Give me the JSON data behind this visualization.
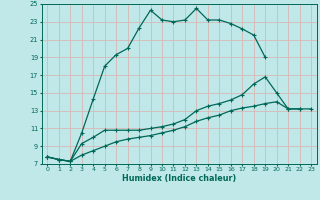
{
  "title": "",
  "xlabel": "Humidex (Indice chaleur)",
  "background_color": "#c0e8e8",
  "grid_color": "#d8b8b8",
  "line_color": "#006858",
  "xlim": [
    -0.5,
    23.5
  ],
  "ylim": [
    7,
    25
  ],
  "xticks": [
    0,
    1,
    2,
    3,
    4,
    5,
    6,
    7,
    8,
    9,
    10,
    11,
    12,
    13,
    14,
    15,
    16,
    17,
    18,
    19,
    20,
    21,
    22,
    23
  ],
  "yticks": [
    7,
    9,
    11,
    13,
    15,
    17,
    19,
    21,
    23,
    25
  ],
  "series1": {
    "x": [
      0,
      1,
      2,
      3,
      4,
      5,
      6,
      7,
      8,
      9,
      10,
      11,
      12,
      13,
      14,
      15,
      16,
      17,
      18,
      19
    ],
    "y": [
      7.8,
      7.5,
      7.3,
      10.5,
      14.3,
      18.0,
      19.3,
      20.0,
      22.3,
      24.3,
      23.2,
      23.0,
      23.2,
      24.5,
      23.2,
      23.2,
      22.8,
      22.2,
      21.5,
      19.0
    ]
  },
  "series2": {
    "x": [
      0,
      1,
      2,
      3,
      4,
      5,
      6,
      7,
      8,
      9,
      10,
      11,
      12,
      13,
      14,
      15,
      16,
      17,
      18,
      19,
      20,
      21,
      22
    ],
    "y": [
      7.8,
      7.5,
      7.3,
      9.3,
      10.0,
      10.8,
      10.8,
      10.8,
      10.8,
      11.0,
      11.2,
      11.5,
      12.0,
      13.0,
      13.5,
      13.8,
      14.2,
      14.8,
      16.0,
      16.8,
      15.0,
      13.2,
      13.2
    ]
  },
  "series3": {
    "x": [
      0,
      1,
      2,
      3,
      4,
      5,
      6,
      7,
      8,
      9,
      10,
      11,
      12,
      13,
      14,
      15,
      16,
      17,
      18,
      19,
      20,
      21,
      22,
      23
    ],
    "y": [
      7.8,
      7.5,
      7.3,
      8.0,
      8.5,
      9.0,
      9.5,
      9.8,
      10.0,
      10.2,
      10.5,
      10.8,
      11.2,
      11.8,
      12.2,
      12.5,
      13.0,
      13.3,
      13.5,
      13.8,
      14.0,
      13.2,
      13.2,
      13.2
    ]
  }
}
